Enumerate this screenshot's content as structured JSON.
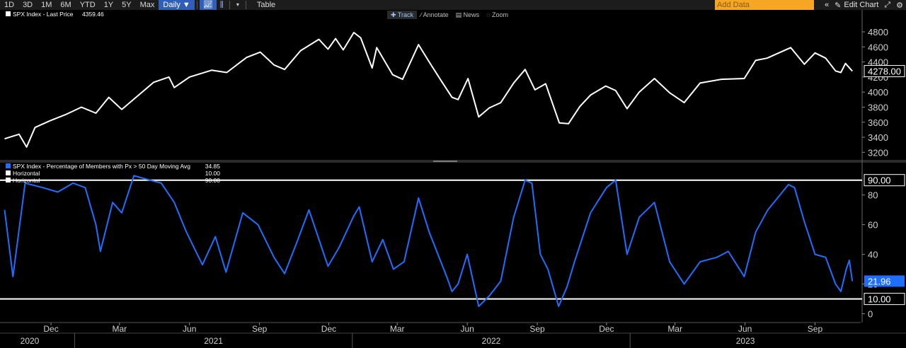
{
  "toolbar": {
    "periods": [
      "1D",
      "3D",
      "1M",
      "6M",
      "YTD",
      "1Y",
      "5Y",
      "Max"
    ],
    "frequency_label": "Daily ▼",
    "table_label": "Table",
    "add_data_placeholder": "Add Data",
    "edit_chart_label": "Edit Chart",
    "chart_tools": {
      "track_label": "Track",
      "annotate_label": "Annotate",
      "news_label": "News",
      "zoom_label": "Zoom"
    }
  },
  "chart_data": [
    {
      "type": "line",
      "legend": [
        {
          "label": "SPX Index - Last Price",
          "value": "4359.46",
          "color": "#ffffff"
        }
      ],
      "last_value_label": "4278.00",
      "ylim": [
        3100,
        4950
      ],
      "y_ticks": [
        3200,
        3400,
        3600,
        3800,
        4000,
        4200,
        4400,
        4600,
        4800
      ],
      "series": [
        {
          "color": "#ffffff",
          "points": [
            [
              "2020-10-01",
              3380
            ],
            [
              "2020-10-20",
              3440
            ],
            [
              "2020-10-30",
              3270
            ],
            [
              "2020-11-10",
              3530
            ],
            [
              "2020-11-30",
              3620
            ],
            [
              "2020-12-20",
              3700
            ],
            [
              "2021-01-10",
              3800
            ],
            [
              "2021-01-29",
              3720
            ],
            [
              "2021-02-15",
              3930
            ],
            [
              "2021-03-04",
              3770
            ],
            [
              "2021-03-25",
              3950
            ],
            [
              "2021-04-15",
              4130
            ],
            [
              "2021-05-05",
              4200
            ],
            [
              "2021-05-12",
              4060
            ],
            [
              "2021-06-01",
              4200
            ],
            [
              "2021-06-30",
              4290
            ],
            [
              "2021-07-20",
              4260
            ],
            [
              "2021-08-15",
              4460
            ],
            [
              "2021-09-02",
              4530
            ],
            [
              "2021-09-20",
              4360
            ],
            [
              "2021-10-04",
              4300
            ],
            [
              "2021-10-25",
              4550
            ],
            [
              "2021-11-18",
              4700
            ],
            [
              "2021-11-30",
              4570
            ],
            [
              "2021-12-10",
              4710
            ],
            [
              "2021-12-20",
              4560
            ],
            [
              "2022-01-03",
              4790
            ],
            [
              "2022-01-12",
              4720
            ],
            [
              "2022-01-27",
              4320
            ],
            [
              "2022-02-02",
              4590
            ],
            [
              "2022-02-23",
              4230
            ],
            [
              "2022-03-08",
              4170
            ],
            [
              "2022-03-29",
              4630
            ],
            [
              "2022-04-12",
              4400
            ],
            [
              "2022-04-29",
              4130
            ],
            [
              "2022-05-12",
              3930
            ],
            [
              "2022-05-20",
              3900
            ],
            [
              "2022-06-02",
              4180
            ],
            [
              "2022-06-16",
              3670
            ],
            [
              "2022-06-30",
              3790
            ],
            [
              "2022-07-15",
              3860
            ],
            [
              "2022-08-01",
              4120
            ],
            [
              "2022-08-16",
              4300
            ],
            [
              "2022-08-29",
              4030
            ],
            [
              "2022-09-12",
              4110
            ],
            [
              "2022-09-30",
              3590
            ],
            [
              "2022-10-12",
              3580
            ],
            [
              "2022-10-27",
              3810
            ],
            [
              "2022-11-10",
              3960
            ],
            [
              "2022-11-30",
              4080
            ],
            [
              "2022-12-13",
              4020
            ],
            [
              "2022-12-28",
              3780
            ],
            [
              "2023-01-13",
              4000
            ],
            [
              "2023-02-02",
              4180
            ],
            [
              "2023-02-22",
              3990
            ],
            [
              "2023-03-13",
              3860
            ],
            [
              "2023-04-03",
              4120
            ],
            [
              "2023-05-01",
              4170
            ],
            [
              "2023-05-31",
              4180
            ],
            [
              "2023-06-15",
              4420
            ],
            [
              "2023-06-30",
              4450
            ],
            [
              "2023-07-31",
              4590
            ],
            [
              "2023-08-18",
              4370
            ],
            [
              "2023-09-01",
              4520
            ],
            [
              "2023-09-15",
              4450
            ],
            [
              "2023-09-28",
              4280
            ],
            [
              "2023-10-05",
              4260
            ],
            [
              "2023-10-11",
              4380
            ],
            [
              "2023-10-20",
              4278
            ]
          ]
        }
      ]
    },
    {
      "type": "line",
      "legend": [
        {
          "label": "SPX Index - Percentage of Members with Px > 50 Day Moving Avg",
          "value": "34.85",
          "color": "#1e6fff"
        },
        {
          "label": "Horizontal",
          "value": "10.00",
          "color": "#ffffff"
        },
        {
          "label": "Horizontal",
          "value": "90.00",
          "color": "#ffffff"
        }
      ],
      "ylim": [
        -4,
        97
      ],
      "y_ticks": [
        0,
        20,
        40,
        60,
        80
      ],
      "last_value_label": "21.96",
      "horizontal_lines": [
        {
          "value": 90,
          "label": "90.00"
        },
        {
          "value": 10,
          "label": "10.00"
        }
      ],
      "series": [
        {
          "color": "#1e6fff",
          "points": [
            [
              "2020-10-01",
              70
            ],
            [
              "2020-10-12",
              25
            ],
            [
              "2020-10-28",
              88
            ],
            [
              "2020-11-20",
              85
            ],
            [
              "2020-12-10",
              82
            ],
            [
              "2020-12-30",
              88
            ],
            [
              "2021-01-15",
              85
            ],
            [
              "2021-01-29",
              60
            ],
            [
              "2021-02-04",
              42
            ],
            [
              "2021-02-20",
              75
            ],
            [
              "2021-03-04",
              68
            ],
            [
              "2021-03-20",
              93
            ],
            [
              "2021-04-10",
              90
            ],
            [
              "2021-04-25",
              88
            ],
            [
              "2021-05-12",
              75
            ],
            [
              "2021-05-28",
              55
            ],
            [
              "2021-06-18",
              33
            ],
            [
              "2021-07-05",
              52
            ],
            [
              "2021-07-19",
              28
            ],
            [
              "2021-08-10",
              68
            ],
            [
              "2021-08-30",
              60
            ],
            [
              "2021-09-20",
              38
            ],
            [
              "2021-10-04",
              27
            ],
            [
              "2021-10-20",
              48
            ],
            [
              "2021-11-05",
              70
            ],
            [
              "2021-11-30",
              32
            ],
            [
              "2021-12-15",
              45
            ],
            [
              "2022-01-03",
              66
            ],
            [
              "2022-01-10",
              72
            ],
            [
              "2022-01-27",
              35
            ],
            [
              "2022-02-10",
              50
            ],
            [
              "2022-02-24",
              30
            ],
            [
              "2022-03-10",
              35
            ],
            [
              "2022-03-29",
              78
            ],
            [
              "2022-04-12",
              55
            ],
            [
              "2022-05-05",
              25
            ],
            [
              "2022-05-12",
              15
            ],
            [
              "2022-05-20",
              20
            ],
            [
              "2022-06-01",
              40
            ],
            [
              "2022-06-16",
              5
            ],
            [
              "2022-06-30",
              12
            ],
            [
              "2022-07-15",
              22
            ],
            [
              "2022-08-01",
              65
            ],
            [
              "2022-08-16",
              90
            ],
            [
              "2022-08-25",
              88
            ],
            [
              "2022-09-05",
              40
            ],
            [
              "2022-09-15",
              30
            ],
            [
              "2022-09-29",
              5
            ],
            [
              "2022-10-10",
              18
            ],
            [
              "2022-10-20",
              35
            ],
            [
              "2022-11-10",
              68
            ],
            [
              "2022-12-01",
              85
            ],
            [
              "2022-12-13",
              90
            ],
            [
              "2022-12-28",
              40
            ],
            [
              "2023-01-13",
              65
            ],
            [
              "2023-02-02",
              75
            ],
            [
              "2023-02-22",
              35
            ],
            [
              "2023-03-13",
              20
            ],
            [
              "2023-04-03",
              35
            ],
            [
              "2023-04-25",
              38
            ],
            [
              "2023-05-10",
              42
            ],
            [
              "2023-05-31",
              25
            ],
            [
              "2023-06-15",
              55
            ],
            [
              "2023-07-01",
              70
            ],
            [
              "2023-07-28",
              87
            ],
            [
              "2023-08-05",
              85
            ],
            [
              "2023-08-18",
              62
            ],
            [
              "2023-09-01",
              40
            ],
            [
              "2023-09-15",
              38
            ],
            [
              "2023-09-28",
              20
            ],
            [
              "2023-10-05",
              15
            ],
            [
              "2023-10-12",
              30
            ],
            [
              "2023-10-16",
              36
            ],
            [
              "2023-10-20",
              22
            ]
          ]
        }
      ]
    }
  ],
  "x_axis": {
    "range": [
      "2020-09-25",
      "2023-10-31"
    ],
    "month_ticks": [
      {
        "label": "Dec",
        "date": "2020-12-01"
      },
      {
        "label": "Mar",
        "date": "2021-03-01"
      },
      {
        "label": "Jun",
        "date": "2021-06-01"
      },
      {
        "label": "Sep",
        "date": "2021-09-01"
      },
      {
        "label": "Dec",
        "date": "2021-12-01"
      },
      {
        "label": "Mar",
        "date": "2022-03-01"
      },
      {
        "label": "Jun",
        "date": "2022-06-01"
      },
      {
        "label": "Sep",
        "date": "2022-09-01"
      },
      {
        "label": "Dec",
        "date": "2022-12-01"
      },
      {
        "label": "Mar",
        "date": "2023-03-01"
      },
      {
        "label": "Jun",
        "date": "2023-06-01"
      },
      {
        "label": "Sep",
        "date": "2023-09-01"
      }
    ],
    "year_ticks": [
      {
        "label": "2020",
        "date": "2020-09-25"
      },
      {
        "label": "2021",
        "date": "2021-01-01"
      },
      {
        "label": "2022",
        "date": "2022-01-01"
      },
      {
        "label": "2023",
        "date": "2023-01-01"
      }
    ]
  }
}
